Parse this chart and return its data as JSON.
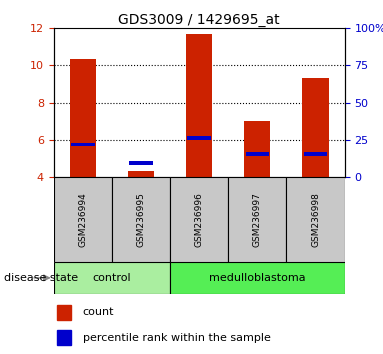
{
  "title": "GDS3009 / 1429695_at",
  "samples": [
    "GSM236994",
    "GSM236995",
    "GSM236996",
    "GSM236997",
    "GSM236998"
  ],
  "count_values": [
    10.35,
    4.3,
    11.7,
    7.0,
    9.35
  ],
  "percentile_values": [
    5.75,
    4.75,
    6.1,
    5.25,
    5.25
  ],
  "ylim_left": [
    4,
    12
  ],
  "ylim_right": [
    0,
    100
  ],
  "yticks_left": [
    4,
    6,
    8,
    10,
    12
  ],
  "yticks_right": [
    0,
    25,
    50,
    75,
    100
  ],
  "ytick_labels_right": [
    "0",
    "25",
    "50",
    "75",
    "100%"
  ],
  "dotted_lines": [
    6,
    8,
    10
  ],
  "bar_color": "#CC2200",
  "percentile_color": "#0000CC",
  "bar_width": 0.45,
  "group_label": "disease state",
  "legend_count_label": "count",
  "legend_pct_label": "percentile rank within the sample",
  "tick_color_left": "#CC2200",
  "tick_color_right": "#0000CC",
  "xlabel_area_color": "#C8C8C8",
  "control_color": "#AAEEA0",
  "medulloblastoma_color": "#55EE55",
  "base_value": 4,
  "white": "#FFFFFF"
}
